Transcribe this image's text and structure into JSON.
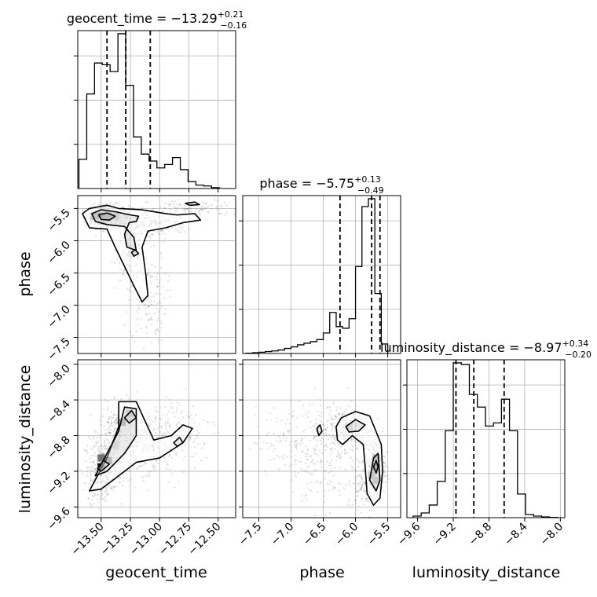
{
  "chart_data": {
    "type": "corner",
    "parameters": [
      "geocent_time",
      "phase",
      "luminosity_distance"
    ],
    "titles": {
      "geocent_time": {
        "prefix": "geocent_time = ",
        "median": "−13.29",
        "upper": "+0.21",
        "lower": "−0.16"
      },
      "phase": {
        "prefix": "phase = ",
        "median": "−5.75",
        "upper": "+0.13",
        "lower": "−0.49"
      },
      "luminosity_distance": {
        "prefix": "luminosity_distance = ",
        "median": "−8.97",
        "upper": "+0.34",
        "lower": "−0.20"
      }
    },
    "axes": {
      "geocent_time": {
        "label": "geocent_time",
        "range": [
          -13.7,
          -12.35
        ],
        "ticks": [
          -13.5,
          -13.25,
          -13.0,
          -12.75,
          -12.5
        ],
        "tick_labels": [
          "−13.50",
          "−13.25",
          "−13.00",
          "−12.75",
          "−12.50"
        ]
      },
      "phase": {
        "label": "phase",
        "range": [
          -7.75,
          -5.3
        ],
        "ticks": [
          -7.5,
          -7.0,
          -6.5,
          -6.0,
          -5.5
        ],
        "tick_labels": [
          "−7.5",
          "−7.0",
          "−6.5",
          "−6.0",
          "−5.5"
        ]
      },
      "luminosity_distance": {
        "label": "luminosity_distance",
        "range": [
          -9.72,
          -7.95
        ],
        "ticks": [
          -9.6,
          -9.2,
          -8.8,
          -8.4,
          -8.0
        ],
        "tick_labels": [
          "−9.6",
          "−9.2",
          "−8.8",
          "−8.4",
          "−8.0"
        ]
      }
    },
    "histograms": {
      "geocent_time": {
        "edges": [
          -13.69,
          -13.6233,
          -13.5567,
          -13.49,
          -13.4233,
          -13.3567,
          -13.29,
          -13.2233,
          -13.1567,
          -13.09,
          -13.0233,
          -12.9567,
          -12.89,
          -12.8233,
          -12.7567,
          -12.69,
          -12.6233,
          -12.5567,
          -12.49
        ],
        "counts": [
          0.17,
          0.55,
          0.73,
          0.72,
          0.68,
          0.9,
          0.6,
          0.3,
          0.2,
          0.16,
          0.12,
          0.14,
          0.18,
          0.11,
          0.04,
          0.02,
          0.015,
          0.005
        ],
        "quantiles": [
          -13.45,
          -13.29,
          -13.08
        ]
      },
      "phase": {
        "edges": [
          -7.7,
          -7.6,
          -7.5,
          -7.4,
          -7.3,
          -7.2,
          -7.1,
          -7.0,
          -6.9,
          -6.8,
          -6.7,
          -6.6,
          -6.5,
          -6.4,
          -6.3,
          -6.2,
          -6.1,
          -6.0,
          -5.9,
          -5.8,
          -5.7,
          -5.6,
          -5.5
        ],
        "counts": [
          0.002,
          0.005,
          0.008,
          0.012,
          0.016,
          0.022,
          0.032,
          0.042,
          0.055,
          0.065,
          0.075,
          0.088,
          0.13,
          0.26,
          0.17,
          0.16,
          0.22,
          0.55,
          0.93,
          0.98,
          0.38,
          0.06
        ],
        "quantiles": [
          -6.24,
          -5.75,
          -5.62
        ]
      },
      "luminosity_distance": {
        "edges": [
          -9.65,
          -9.56,
          -9.47,
          -9.38,
          -9.29,
          -9.2,
          -9.11,
          -9.02,
          -8.93,
          -8.84,
          -8.75,
          -8.66,
          -8.57,
          -8.48,
          -8.39,
          -8.3,
          -8.21,
          -8.12,
          -8.03
        ],
        "counts": [
          0.01,
          0.03,
          0.08,
          0.23,
          0.55,
          0.98,
          0.97,
          0.78,
          0.7,
          0.58,
          0.6,
          0.75,
          0.55,
          0.15,
          0.02,
          0.01,
          0.005,
          0.002
        ],
        "quantiles": [
          -9.17,
          -8.97,
          -8.63
        ]
      }
    },
    "scatter_clusters": {
      "geocent_time-phase": [
        {
          "cx": -13.45,
          "cy": -5.62,
          "sx": 0.09,
          "sy": 0.09,
          "n": 340
        },
        {
          "cx": -13.25,
          "cy": -6.1,
          "sx": 0.06,
          "sy": 0.25,
          "n": 200
        },
        {
          "cx": -13.05,
          "cy": -5.75,
          "sx": 0.14,
          "sy": 0.12,
          "n": 160
        },
        {
          "cx": -13.1,
          "cy": -6.9,
          "sx": 0.08,
          "sy": 0.35,
          "n": 140
        },
        {
          "cx": -12.7,
          "cy": -5.5,
          "sx": 0.2,
          "sy": 0.07,
          "n": 100
        }
      ],
      "geocent_time-luminosity_distance": [
        {
          "cx": -13.48,
          "cy": -9.15,
          "sx": 0.08,
          "sy": 0.15,
          "n": 260
        },
        {
          "cx": -13.35,
          "cy": -8.75,
          "sx": 0.08,
          "sy": 0.14,
          "n": 230
        },
        {
          "cx": -13.12,
          "cy": -8.95,
          "sx": 0.15,
          "sy": 0.2,
          "n": 220
        },
        {
          "cx": -12.85,
          "cy": -8.7,
          "sx": 0.18,
          "sy": 0.2,
          "n": 120
        },
        {
          "cx": -13.5,
          "cy": -9.35,
          "sx": 0.06,
          "sy": 0.1,
          "n": 80
        }
      ],
      "phase-luminosity_distance": [
        {
          "cx": -5.7,
          "cy": -9.15,
          "sx": 0.08,
          "sy": 0.16,
          "n": 260
        },
        {
          "cx": -6.2,
          "cy": -8.7,
          "sx": 0.22,
          "sy": 0.12,
          "n": 230
        },
        {
          "cx": -6.8,
          "cy": -8.85,
          "sx": 0.38,
          "sy": 0.2,
          "n": 180
        },
        {
          "cx": -6.4,
          "cy": -9.2,
          "sx": 0.3,
          "sy": 0.25,
          "n": 130
        },
        {
          "cx": -5.85,
          "cy": -9.4,
          "sx": 0.1,
          "sy": 0.1,
          "n": 80
        }
      ]
    },
    "contours": {
      "geocent_time-phase": [
        [
          [
            -13.66,
            -5.58
          ],
          [
            -13.6,
            -5.5
          ],
          [
            -13.45,
            -5.45
          ],
          [
            -13.35,
            -5.5
          ],
          [
            -13.15,
            -5.52
          ],
          [
            -12.95,
            -5.58
          ],
          [
            -12.85,
            -5.6
          ],
          [
            -12.7,
            -5.58
          ],
          [
            -12.65,
            -5.68
          ],
          [
            -12.8,
            -5.72
          ],
          [
            -12.95,
            -5.8
          ],
          [
            -13.1,
            -5.85
          ],
          [
            -13.15,
            -6.1
          ],
          [
            -13.12,
            -6.5
          ],
          [
            -13.1,
            -6.85
          ],
          [
            -13.15,
            -6.95
          ],
          [
            -13.22,
            -6.7
          ],
          [
            -13.3,
            -6.4
          ],
          [
            -13.38,
            -6.1
          ],
          [
            -13.45,
            -5.82
          ],
          [
            -13.6,
            -5.8
          ],
          [
            -13.66,
            -5.58
          ]
        ],
        [
          [
            -13.58,
            -5.58
          ],
          [
            -13.5,
            -5.52
          ],
          [
            -13.38,
            -5.55
          ],
          [
            -13.25,
            -5.6
          ],
          [
            -13.18,
            -5.62
          ],
          [
            -13.2,
            -5.7
          ],
          [
            -13.26,
            -5.72
          ],
          [
            -13.3,
            -5.9
          ],
          [
            -13.28,
            -6.1
          ],
          [
            -13.2,
            -6.15
          ],
          [
            -13.22,
            -5.95
          ],
          [
            -13.3,
            -5.78
          ],
          [
            -13.45,
            -5.75
          ],
          [
            -13.55,
            -5.7
          ],
          [
            -13.58,
            -5.58
          ]
        ],
        [
          [
            -13.52,
            -5.6
          ],
          [
            -13.45,
            -5.57
          ],
          [
            -13.38,
            -5.62
          ],
          [
            -13.43,
            -5.68
          ],
          [
            -13.5,
            -5.67
          ],
          [
            -13.52,
            -5.6
          ]
        ],
        [
          [
            -12.78,
            -5.42
          ],
          [
            -12.7,
            -5.4
          ],
          [
            -12.66,
            -5.44
          ],
          [
            -12.74,
            -5.45
          ],
          [
            -12.78,
            -5.42
          ]
        ],
        [
          [
            -13.24,
            -6.18
          ],
          [
            -13.21,
            -6.14
          ],
          [
            -13.18,
            -6.2
          ],
          [
            -13.22,
            -6.24
          ],
          [
            -13.24,
            -6.18
          ]
        ]
      ],
      "geocent_time-luminosity_distance": [
        [
          [
            -13.6,
            -9.42
          ],
          [
            -13.45,
            -9.05
          ],
          [
            -13.35,
            -8.7
          ],
          [
            -13.35,
            -8.42
          ],
          [
            -13.2,
            -8.42
          ],
          [
            -13.12,
            -8.65
          ],
          [
            -13.05,
            -8.85
          ],
          [
            -12.9,
            -8.8
          ],
          [
            -12.8,
            -8.68
          ],
          [
            -12.72,
            -8.72
          ],
          [
            -12.8,
            -8.88
          ],
          [
            -13.0,
            -9.05
          ],
          [
            -13.2,
            -9.1
          ],
          [
            -13.4,
            -9.3
          ],
          [
            -13.5,
            -9.4
          ],
          [
            -13.6,
            -9.42
          ]
        ],
        [
          [
            -13.55,
            -9.25
          ],
          [
            -13.45,
            -9.0
          ],
          [
            -13.35,
            -8.75
          ],
          [
            -13.3,
            -8.48
          ],
          [
            -13.2,
            -8.5
          ],
          [
            -13.2,
            -8.8
          ],
          [
            -13.3,
            -9.0
          ],
          [
            -13.45,
            -9.2
          ],
          [
            -13.55,
            -9.25
          ]
        ],
        [
          [
            -13.53,
            -9.17
          ],
          [
            -13.48,
            -9.08
          ],
          [
            -13.43,
            -9.12
          ],
          [
            -13.5,
            -9.2
          ],
          [
            -13.53,
            -9.17
          ]
        ],
        [
          [
            -13.3,
            -8.6
          ],
          [
            -13.24,
            -8.52
          ],
          [
            -13.2,
            -8.6
          ],
          [
            -13.26,
            -8.66
          ],
          [
            -13.3,
            -8.6
          ]
        ],
        [
          [
            -12.88,
            -8.88
          ],
          [
            -12.83,
            -8.82
          ],
          [
            -12.8,
            -8.88
          ],
          [
            -12.85,
            -8.92
          ],
          [
            -12.88,
            -8.88
          ]
        ]
      ],
      "phase-luminosity_distance": [
        [
          [
            -6.3,
            -8.7
          ],
          [
            -6.22,
            -8.6
          ],
          [
            -6.0,
            -8.53
          ],
          [
            -5.78,
            -8.58
          ],
          [
            -5.7,
            -8.72
          ],
          [
            -5.6,
            -8.9
          ],
          [
            -5.58,
            -9.2
          ],
          [
            -5.62,
            -9.5
          ],
          [
            -5.72,
            -9.58
          ],
          [
            -5.82,
            -9.45
          ],
          [
            -5.85,
            -9.15
          ],
          [
            -5.88,
            -8.9
          ],
          [
            -6.05,
            -8.8
          ],
          [
            -6.2,
            -8.9
          ],
          [
            -6.28,
            -8.85
          ],
          [
            -6.3,
            -8.7
          ]
        ],
        [
          [
            -5.78,
            -9.3
          ],
          [
            -5.72,
            -9.05
          ],
          [
            -5.65,
            -9.0
          ],
          [
            -5.62,
            -9.3
          ],
          [
            -5.68,
            -9.42
          ],
          [
            -5.78,
            -9.3
          ]
        ],
        [
          [
            -6.15,
            -8.7
          ],
          [
            -6.0,
            -8.62
          ],
          [
            -5.85,
            -8.68
          ],
          [
            -5.95,
            -8.75
          ],
          [
            -6.1,
            -8.76
          ],
          [
            -6.15,
            -8.7
          ]
        ],
        [
          [
            -5.72,
            -9.15
          ],
          [
            -5.68,
            -9.08
          ],
          [
            -5.65,
            -9.15
          ],
          [
            -5.68,
            -9.22
          ],
          [
            -5.72,
            -9.15
          ]
        ],
        [
          [
            -6.6,
            -8.72
          ],
          [
            -6.55,
            -8.68
          ],
          [
            -6.52,
            -8.75
          ],
          [
            -6.57,
            -8.8
          ],
          [
            -6.6,
            -8.72
          ]
        ]
      ]
    },
    "density_cells": {
      "geocent_time-phase": [
        {
          "x": -13.5,
          "y": -5.62,
          "v": 1.0
        },
        {
          "x": -13.44,
          "y": -5.62,
          "v": 0.75
        },
        {
          "x": -13.56,
          "y": -5.62,
          "v": 0.55
        },
        {
          "x": -13.38,
          "y": -5.62,
          "v": 0.4
        },
        {
          "x": -13.5,
          "y": -5.7,
          "v": 0.3
        },
        {
          "x": -13.24,
          "y": -6.2,
          "v": 0.2
        }
      ],
      "geocent_time-luminosity_distance": [
        {
          "x": -13.5,
          "y": -9.15,
          "v": 1.0
        },
        {
          "x": -13.44,
          "y": -9.08,
          "v": 0.7
        },
        {
          "x": -13.5,
          "y": -9.05,
          "v": 0.55
        },
        {
          "x": -13.32,
          "y": -8.65,
          "v": 0.7
        },
        {
          "x": -13.26,
          "y": -8.55,
          "v": 0.45
        },
        {
          "x": -13.38,
          "y": -8.9,
          "v": 0.3
        }
      ],
      "phase-luminosity_distance": [
        {
          "x": -5.68,
          "y": -9.15,
          "v": 1.0
        },
        {
          "x": -5.68,
          "y": -9.05,
          "v": 0.6
        },
        {
          "x": -5.75,
          "y": -9.25,
          "v": 0.5
        },
        {
          "x": -5.68,
          "y": -9.3,
          "v": 0.45
        },
        {
          "x": -6.1,
          "y": -8.7,
          "v": 0.3
        }
      ]
    },
    "grid": true
  }
}
